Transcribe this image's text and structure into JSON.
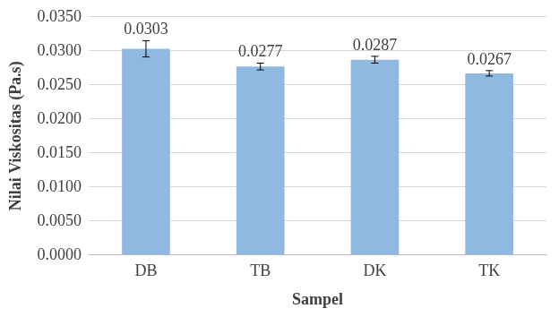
{
  "chart_data": {
    "type": "bar",
    "x_label": "Sampel",
    "y_label": "Nilai Viskositas (Pa.s)",
    "categories": [
      "DB",
      "TB",
      "DK",
      "TK"
    ],
    "values": [
      0.0303,
      0.0277,
      0.0287,
      0.0267
    ],
    "errors": [
      0.0012,
      0.0005,
      0.0005,
      0.0004
    ],
    "color": "#8fb9df",
    "ylim": [
      0,
      0.035
    ],
    "yticks": [
      {
        "value": 0,
        "label": "0.0000"
      },
      {
        "value": 0.005,
        "label": "0.0050"
      },
      {
        "value": 0.01,
        "label": "0.0100"
      },
      {
        "value": 0.015,
        "label": "0.0150"
      },
      {
        "value": 0.02,
        "label": "0.0200"
      },
      {
        "value": 0.025,
        "label": "0.0250"
      },
      {
        "value": 0.03,
        "label": "0.0300"
      },
      {
        "value": 0.035,
        "label": "0.0350"
      }
    ],
    "grid": true,
    "data_labels": true
  }
}
